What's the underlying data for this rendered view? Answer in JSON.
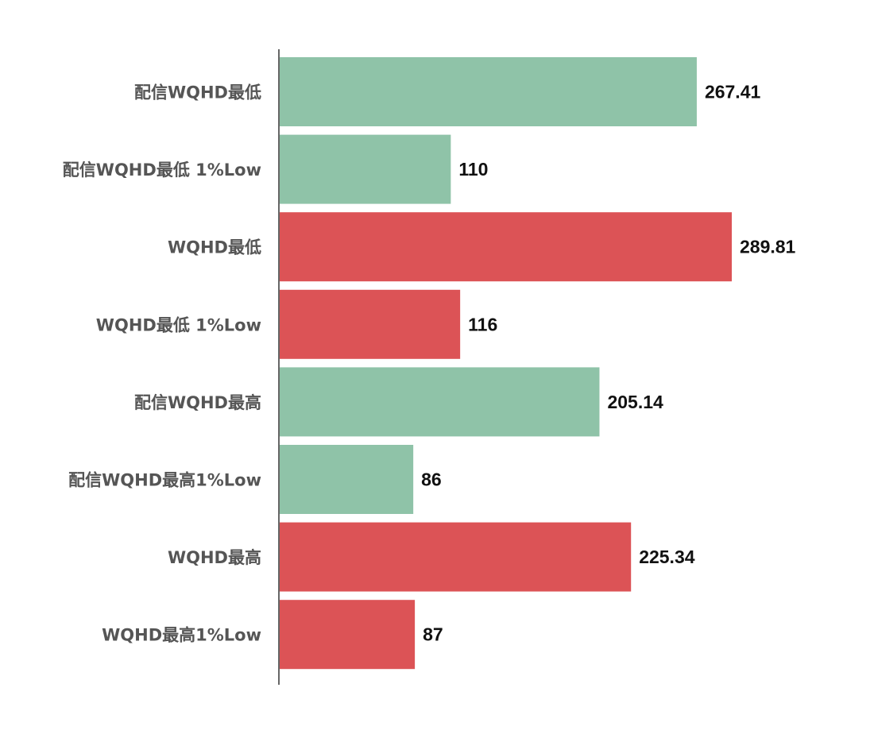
{
  "chart_data": {
    "type": "bar",
    "orientation": "horizontal",
    "categories": [
      "配信WQHD最低",
      "配信WQHD最低 1%Low",
      "WQHD最低",
      "WQHD最低 1%Low",
      "配信WQHD最高",
      "配信WQHD最高1%Low",
      "WQHD最高",
      "WQHD最高1%Low"
    ],
    "values": [
      267.41,
      110,
      289.81,
      116,
      205.14,
      86,
      225.34,
      87
    ],
    "value_labels": [
      "267.41",
      "110",
      "289.81",
      "116",
      "205.14",
      "86",
      "225.34",
      "87"
    ],
    "bar_colors": [
      "#8fc3a8",
      "#8fc3a8",
      "#dc5356",
      "#dc5356",
      "#8fc3a8",
      "#8fc3a8",
      "#dc5356",
      "#dc5356"
    ],
    "title": "",
    "xlabel": "",
    "ylabel": "",
    "xlim": [
      0,
      300
    ],
    "grid": false,
    "axis_color": "#666666"
  }
}
